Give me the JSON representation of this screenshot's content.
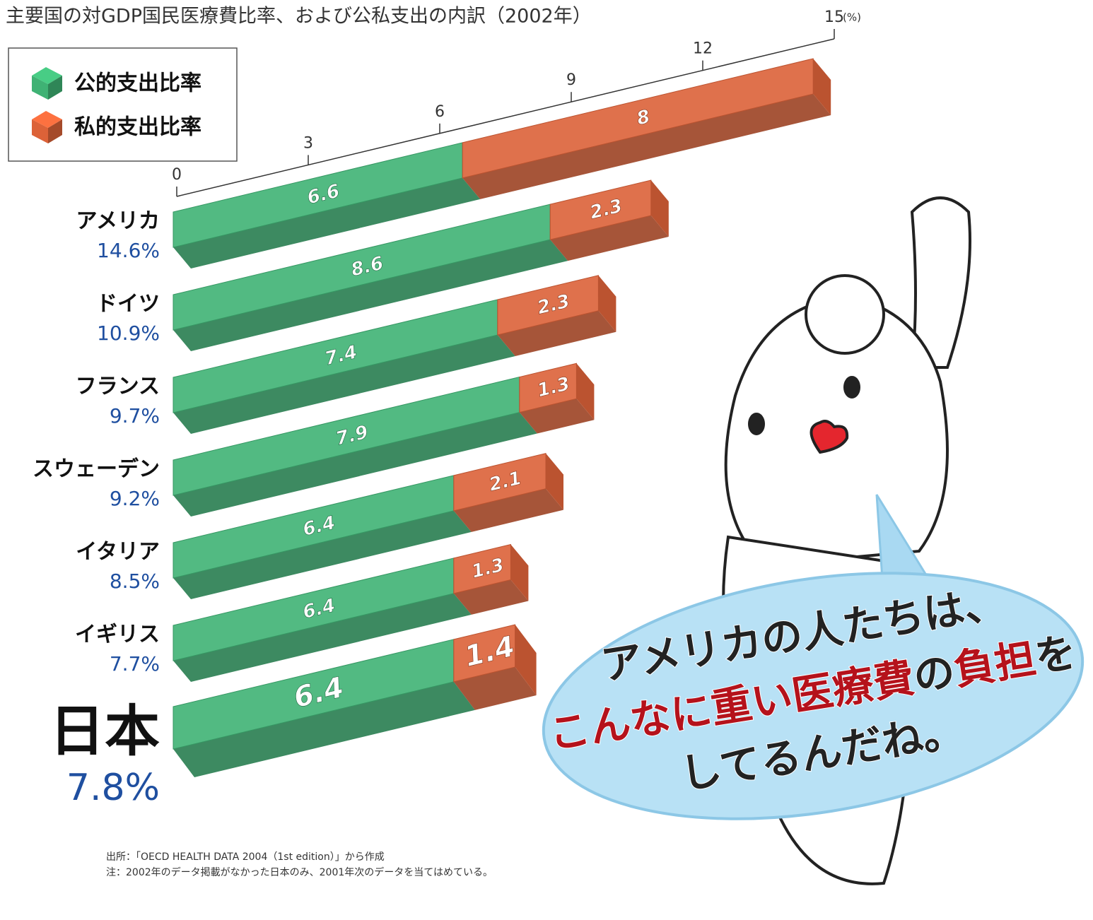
{
  "chart_data": {
    "type": "bar3d",
    "title": "主要国の対GDP国民医療費比率、および公私支出の内訳（2002年）",
    "categories": [
      "アメリカ",
      "ドイツ",
      "フランス",
      "スウェーデン",
      "イタリア",
      "イギリス",
      "日本"
    ],
    "total_labels": [
      "14.6%",
      "10.9%",
      "9.7%",
      "9.2%",
      "8.5%",
      "7.7%",
      "7.8%"
    ],
    "series": [
      {
        "name": "公的支出比率",
        "color": "#3fb274",
        "values": [
          6.6,
          8.6,
          7.4,
          7.9,
          6.4,
          6.4,
          6.4
        ]
      },
      {
        "name": "私的支出比率",
        "color": "#dc6238",
        "values": [
          8.0,
          2.3,
          2.3,
          1.3,
          2.1,
          1.3,
          1.4
        ]
      }
    ],
    "xlim": [
      0,
      15
    ],
    "xticks": [
      0,
      3,
      6,
      9,
      12,
      15
    ],
    "x_unit": "(%)",
    "legend": "top-left",
    "notes": [
      "出所：「OECD HEALTH DATA 2004（1st edition）」から作成",
      "注：2002年のデータ掲載がなかった日本のみ、2001年次のデータを当てはめている。"
    ],
    "bubble": [
      [
        {
          "text": "アメリカの人たちは、"
        }
      ],
      [
        {
          "text": "こんなに重い医療費",
          "emphasis": true
        },
        {
          "text": "の"
        },
        {
          "text": "負担",
          "emphasis": true
        },
        {
          "text": "を"
        }
      ],
      [
        {
          "text": "してるんだね。"
        }
      ]
    ]
  }
}
